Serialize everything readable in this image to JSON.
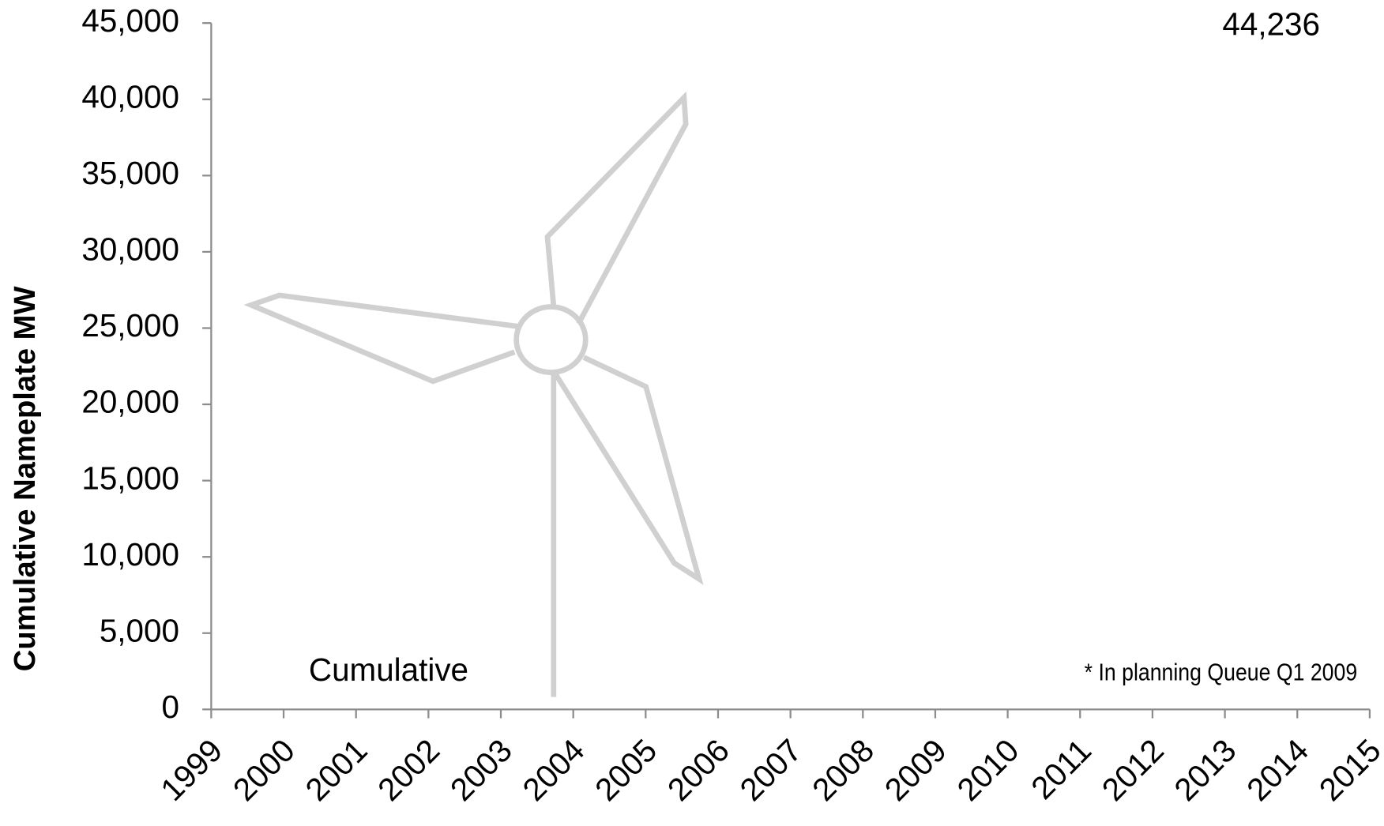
{
  "chart_data": {
    "type": "line",
    "y_label": "Cumulative Nameplate MW",
    "xlim": [
      1999,
      2015
    ],
    "xticks": [
      1999,
      2000,
      2001,
      2002,
      2003,
      2004,
      2005,
      2006,
      2007,
      2008,
      2009,
      2010,
      2011,
      2012,
      2013,
      2014,
      2015
    ],
    "ylim": [
      0,
      45000
    ],
    "yticks": [
      0,
      {
        "value": 5000,
        "label": "5,000"
      },
      {
        "value": 10000,
        "label": "10,000"
      },
      {
        "value": 15000,
        "label": "15,000"
      },
      {
        "value": 20000,
        "label": "20,000"
      },
      {
        "value": 25000,
        "label": "25,000"
      },
      {
        "value": 30000,
        "label": "30,000"
      },
      {
        "value": 35000,
        "label": "35,000"
      },
      {
        "value": 40000,
        "label": "40,000"
      },
      {
        "value": 45000,
        "label": "45,000"
      }
    ],
    "annotations": [
      "44,236",
      "Cumulative",
      "* In planning Queue Q1 2009"
    ]
  }
}
